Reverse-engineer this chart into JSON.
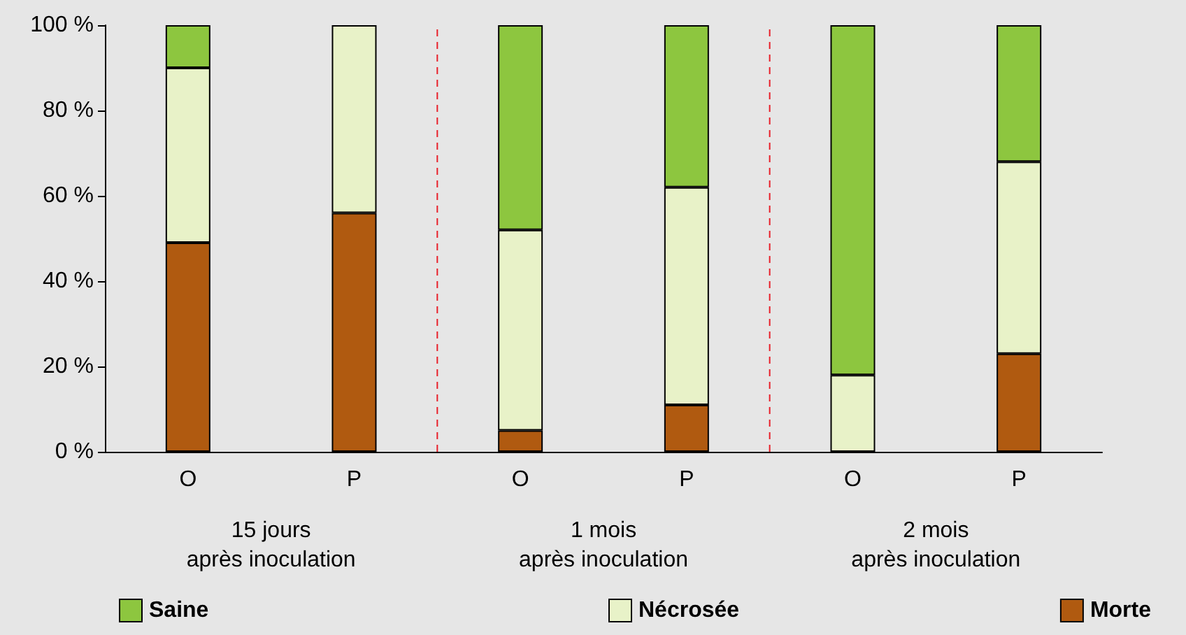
{
  "chart_data": {
    "type": "bar",
    "stacked": true,
    "categories": [
      "O",
      "P",
      "O",
      "P",
      "O",
      "P"
    ],
    "series": [
      {
        "name": "Morte",
        "color": "#b05a10",
        "values": [
          49,
          56,
          5,
          11,
          0,
          23
        ]
      },
      {
        "name": "Nécrosée",
        "color": "#e8f2c8",
        "values": [
          41,
          44,
          47,
          51,
          18,
          45
        ]
      },
      {
        "name": "Saine",
        "color": "#8dc63f",
        "values": [
          10,
          0,
          48,
          38,
          82,
          32
        ]
      }
    ],
    "ylim": [
      0,
      100
    ],
    "yticks": [
      {
        "value": 0,
        "label": "0 %"
      },
      {
        "value": 20,
        "label": "20 %"
      },
      {
        "value": 40,
        "label": "40 %"
      },
      {
        "value": 60,
        "label": "60 %"
      },
      {
        "value": 80,
        "label": "80 %"
      },
      {
        "value": 100,
        "label": "100 %"
      }
    ],
    "annotations": [
      "15 jours\naprès inoculation",
      "1 mois\naprès inoculation",
      "2 mois\naprès inoculation"
    ],
    "grid": false,
    "legend": "bottom"
  }
}
